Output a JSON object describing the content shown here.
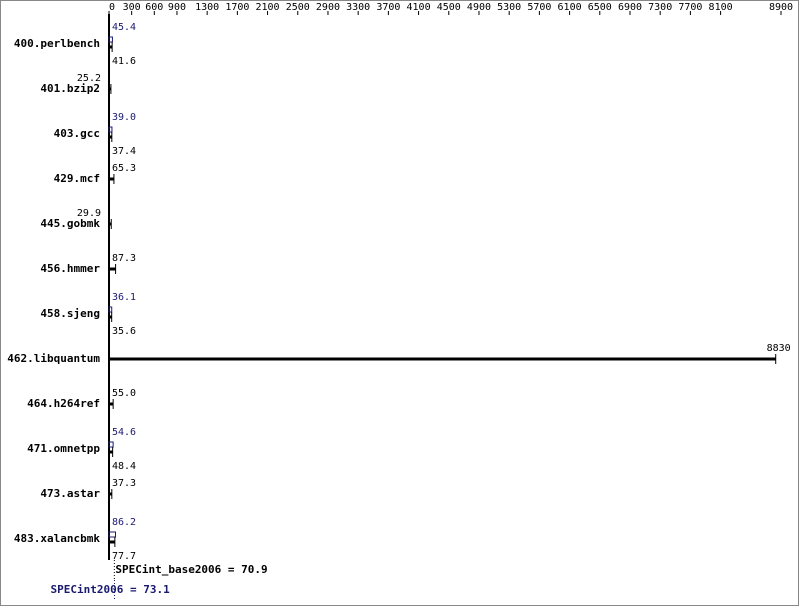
{
  "chart_data": {
    "type": "spec-bar",
    "categories": [
      "400.perlbench",
      "401.bzip2",
      "403.gcc",
      "429.mcf",
      "445.gobmk",
      "456.hmmer",
      "458.sjeng",
      "462.libquantum",
      "464.h264ref",
      "471.omnetpp",
      "473.astar",
      "483.xalancbmk"
    ],
    "series": [
      {
        "color": "#191970",
        "values": [
          45.4,
          null,
          39.0,
          null,
          null,
          null,
          36.1,
          null,
          null,
          54.6,
          null,
          86.2
        ],
        "value_labels": [
          "45.4",
          null,
          "39.0",
          null,
          null,
          null,
          "36.1",
          null,
          null,
          "54.6",
          null,
          "86.2"
        ]
      },
      {
        "color": "#000000",
        "values": [
          41.6,
          25.2,
          37.4,
          65.3,
          29.9,
          87.3,
          35.6,
          8830,
          55.0,
          48.4,
          37.3,
          77.7
        ],
        "value_labels": [
          "41.6",
          "25.2",
          "37.4",
          "65.3",
          "29.9",
          "87.3",
          "35.6",
          "8830",
          "55.0",
          "48.4",
          "37.3",
          "77.7"
        ]
      }
    ],
    "xlim": [
      0,
      8900
    ],
    "xticks": [
      0,
      300,
      600,
      900,
      1300,
      1700,
      2100,
      2500,
      2900,
      3300,
      3700,
      4100,
      4500,
      4900,
      5300,
      5700,
      6100,
      6500,
      6900,
      7300,
      7700,
      8100,
      8900
    ],
    "summary": [
      {
        "label": "SPECint_base2006 = 70.9",
        "value": 70.9,
        "color": "#000000"
      },
      {
        "label": "SPECint2006 = 73.1",
        "value": 73.1,
        "color": "#191970"
      }
    ]
  }
}
